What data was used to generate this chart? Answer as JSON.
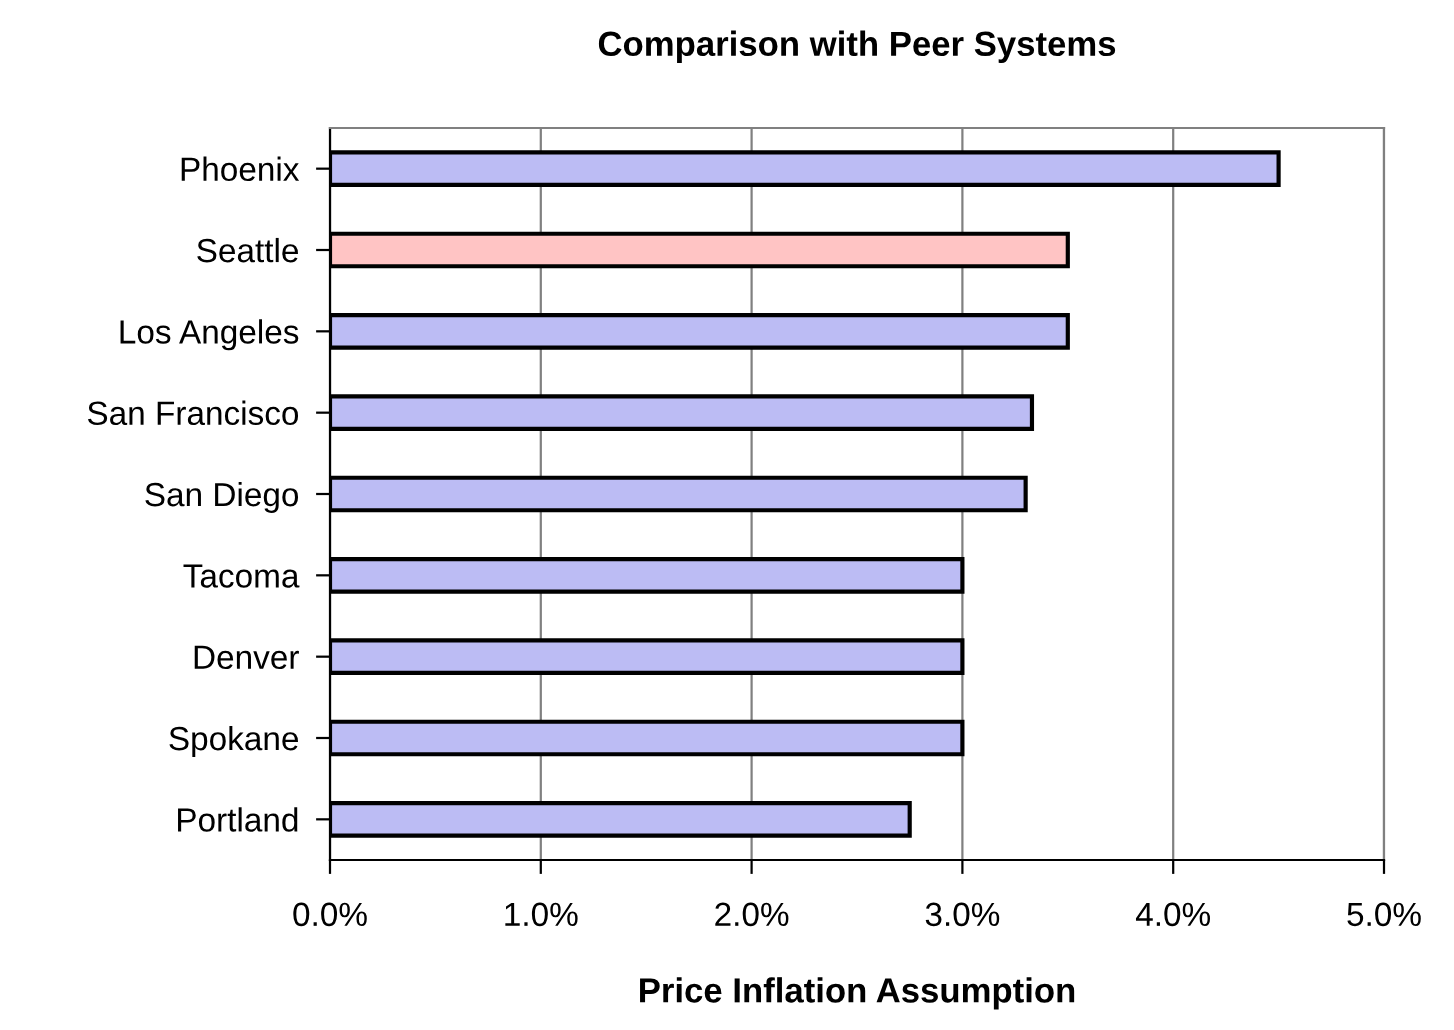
{
  "chart_data": {
    "type": "bar",
    "orientation": "horizontal",
    "title": "Comparison with Peer Systems",
    "xlabel": "Price Inflation Assumption",
    "categories": [
      "Phoenix",
      "Seattle",
      "Los Angeles",
      "San Francisco",
      "San Diego",
      "Tacoma",
      "Denver",
      "Spokane",
      "Portland"
    ],
    "values": [
      4.5,
      3.5,
      3.5,
      3.33,
      3.3,
      3.0,
      3.0,
      3.0,
      2.75
    ],
    "colors": [
      "#bcbcf4",
      "#ffc4c4",
      "#bcbcf4",
      "#bcbcf4",
      "#bcbcf4",
      "#bcbcf4",
      "#bcbcf4",
      "#bcbcf4",
      "#bcbcf4"
    ],
    "xlim": [
      0,
      5
    ],
    "xticks": [
      {
        "value": 0,
        "label": "0.0%"
      },
      {
        "value": 1,
        "label": "1.0%"
      },
      {
        "value": 2,
        "label": "2.0%"
      },
      {
        "value": 3,
        "label": "3.0%"
      },
      {
        "value": 4,
        "label": "4.0%"
      },
      {
        "value": 5,
        "label": "5.0%"
      }
    ],
    "grid": "x",
    "legend": false
  }
}
